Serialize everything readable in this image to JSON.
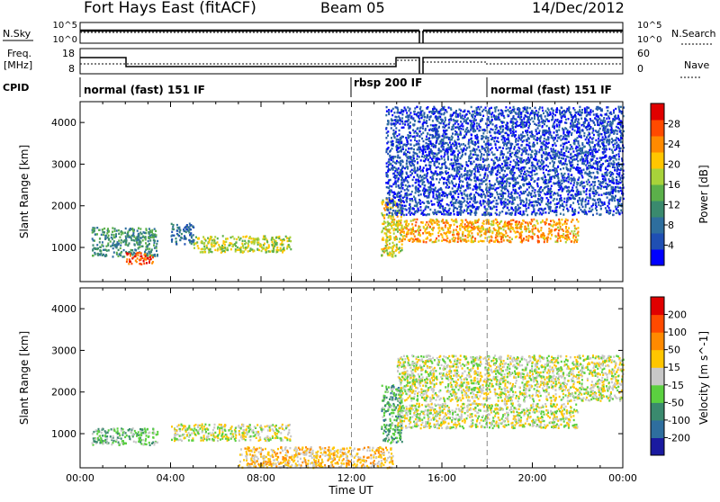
{
  "header": {
    "station": "Fort Hays East (fitACF)",
    "beam": "Beam 05",
    "date": "14/Dec/2012"
  },
  "noise_panel": {
    "left_label": "N.Sky",
    "right_label": "N.Search",
    "ticks_left": [
      "10^5",
      "10^0"
    ],
    "ticks_right": [
      "10^5",
      "10^0"
    ]
  },
  "freq_panel": {
    "left_label_1": "Freq.",
    "left_label_2": "[MHz]",
    "right_label": "Nave",
    "ticks_left": [
      "18",
      "8"
    ],
    "ticks_right": [
      "60",
      "0"
    ]
  },
  "cpid": {
    "label": "CPID",
    "segments": [
      {
        "text": "normal (fast) 151 IF",
        "start_h": 0
      },
      {
        "text": "rbsp 200 IF",
        "start_h": 12
      },
      {
        "text": "normal (fast) 151 IF",
        "start_h": 18
      }
    ]
  },
  "chart_data": [
    {
      "type": "heatmap",
      "name": "power",
      "ylabel": "Slant Range [km]",
      "xlabel": "",
      "ylim": [
        180,
        4500
      ],
      "xlim_hours": [
        0,
        24
      ],
      "colorbar_label": "Power [dB]",
      "colorbar_ticks": [
        "28",
        "24",
        "20",
        "16",
        "12",
        "8",
        "4"
      ],
      "colors": [
        "#0000ff",
        "#1f4fb3",
        "#2e6e9e",
        "#3a8a6e",
        "#5bb04a",
        "#a8d23a",
        "#ffc600",
        "#ff8a00",
        "#ff4a00",
        "#e00000"
      ],
      "regions": [
        {
          "x": [
            0.5,
            3.4
          ],
          "y": [
            800,
            1500
          ],
          "level": 0.35
        },
        {
          "x": [
            2.0,
            3.2
          ],
          "y": [
            620,
            900
          ],
          "level": 0.85
        },
        {
          "x": [
            4.0,
            5.0
          ],
          "y": [
            1100,
            1600
          ],
          "level": 0.25
        },
        {
          "x": [
            5.0,
            9.3
          ],
          "y": [
            900,
            1300
          ],
          "level": 0.55
        },
        {
          "x": [
            14.0,
            22.0
          ],
          "y": [
            1150,
            1700
          ],
          "level": 0.7
        },
        {
          "x": [
            13.3,
            14.2
          ],
          "y": [
            800,
            2200
          ],
          "level": 0.6
        },
        {
          "x": [
            13.5,
            24.0
          ],
          "y": [
            1800,
            4400
          ],
          "level": 0.15
        }
      ]
    },
    {
      "type": "heatmap",
      "name": "velocity",
      "ylabel": "Slant Range [km]",
      "xlabel": "Time UT",
      "ylim": [
        180,
        4500
      ],
      "xlim_hours": [
        0,
        24
      ],
      "x_tick_labels": [
        "00:00",
        "04:00",
        "08:00",
        "12:00",
        "16:00",
        "20:00",
        "00:00"
      ],
      "y_tick_labels": [
        "1000",
        "2000",
        "3000",
        "4000"
      ],
      "colorbar_label": "Velocity [m s^-1]",
      "colorbar_ticks": [
        "200",
        "100",
        "50",
        "15",
        "-15",
        "-50",
        "-100",
        "-200"
      ],
      "colors": [
        "#1a1aa0",
        "#2e6e9e",
        "#3a8a6e",
        "#5bd040",
        "#c8c8c8",
        "#ffc600",
        "#ff8a00",
        "#ff4a00",
        "#e00000"
      ],
      "regions": [
        {
          "x": [
            0.5,
            3.4
          ],
          "y": [
            750,
            1150
          ],
          "level": 0.38
        },
        {
          "x": [
            4.0,
            9.3
          ],
          "y": [
            850,
            1250
          ],
          "level": 0.5
        },
        {
          "x": [
            7.0,
            13.8
          ],
          "y": [
            200,
            700
          ],
          "level": 0.6
        },
        {
          "x": [
            13.3,
            14.2
          ],
          "y": [
            800,
            2200
          ],
          "level": 0.35
        },
        {
          "x": [
            14.0,
            22.0
          ],
          "y": [
            1150,
            1750
          ],
          "level": 0.5
        },
        {
          "x": [
            14.0,
            24.0
          ],
          "y": [
            1800,
            2900
          ],
          "level": 0.5
        }
      ]
    }
  ]
}
